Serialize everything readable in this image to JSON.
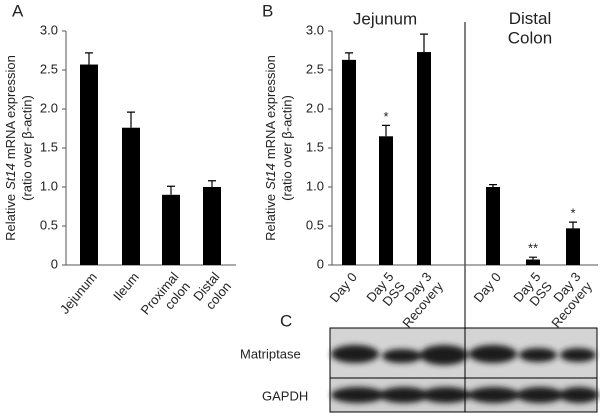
{
  "panel_labels": [
    "A",
    "B",
    "C"
  ],
  "blot": {
    "rows": [
      "Matriptase",
      "GAPDH"
    ]
  },
  "chart_data": [
    {
      "type": "bar",
      "categories": [
        "Jejunum",
        "Ileum",
        "Proximal\ncolon",
        "Distal\ncolon"
      ],
      "values": [
        2.57,
        1.76,
        0.9,
        1.0
      ],
      "errors": [
        0.15,
        0.2,
        0.11,
        0.08
      ],
      "color": "#000000",
      "ylim": [
        0,
        3
      ],
      "yticks": [
        0,
        0.5,
        {
          "value": 1,
          "label": "1.0"
        },
        1.5,
        {
          "value": 2,
          "label": "2.0"
        },
        2.5,
        {
          "value": 3,
          "label": "3.0"
        }
      ],
      "ylabel": {
        "line1": [
          "Relative",
          "St14",
          "mRNA expression"
        ],
        "line2": "(ratio over β-actin)"
      }
    },
    {
      "type": "bar",
      "groups": [
        "Jejunum",
        "Distal\nColon"
      ],
      "categories": [
        "Day 0",
        "Day 5\nDSS",
        "Day 3\nRecovery",
        "Day 0",
        "Day 5\nDSS",
        "Day 3\nRecovery"
      ],
      "values": [
        2.63,
        1.65,
        2.73,
        1.0,
        0.07,
        0.47
      ],
      "errors": [
        0.09,
        0.14,
        0.23,
        0.03,
        0.03,
        0.08
      ],
      "significance": [
        null,
        "*",
        null,
        null,
        "**",
        "*"
      ],
      "color": "#000000",
      "ylim": [
        0,
        3
      ],
      "yticks": [
        0,
        0.5,
        {
          "value": 1,
          "label": "1.0"
        },
        1.5,
        {
          "value": 2,
          "label": "2.0"
        },
        2.5,
        {
          "value": 3,
          "label": "3.0"
        }
      ],
      "ylabel": {
        "line1": [
          "Relative",
          "St14",
          "mRNA expression"
        ],
        "line2": "(ratio over β-actin)"
      }
    }
  ]
}
